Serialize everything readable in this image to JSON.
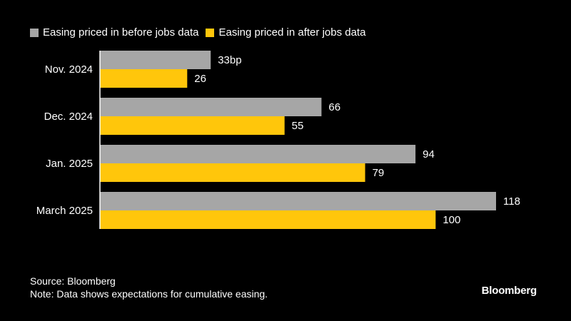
{
  "chart_data": {
    "type": "bar",
    "orientation": "horizontal",
    "categories": [
      "Nov. 2024",
      "Dec. 2024",
      "Jan. 2025",
      "March 2025"
    ],
    "series": [
      {
        "name": "Easing priced in before jobs data",
        "color": "#a6a6a6",
        "values": [
          33,
          66,
          94,
          118
        ],
        "labels": [
          "33bp",
          "66",
          "94",
          "118"
        ]
      },
      {
        "name": "Easing priced in after jobs data",
        "color": "#ffc60b",
        "values": [
          26,
          55,
          79,
          100
        ],
        "labels": [
          "26",
          "55",
          "79",
          "100"
        ]
      }
    ],
    "xlim": [
      0,
      118
    ],
    "grid": false,
    "legend_position": "top-left"
  },
  "footer": {
    "source": "Source: Bloomberg",
    "note": "Note: Data shows expectations for cumulative easing."
  },
  "logo_text": "Bloomberg",
  "colors": {
    "background": "#000000",
    "text": "#ffffff",
    "axis": "#ffffff"
  }
}
